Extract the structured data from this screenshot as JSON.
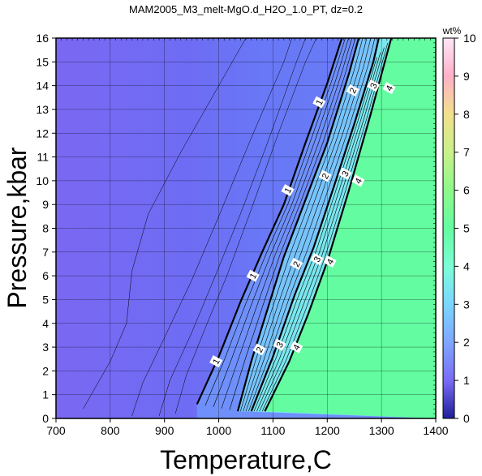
{
  "chart_data": {
    "type": "heatmap",
    "title": "MAM2005_M3_melt-MgO.d_H2O_1.0_PT, dz=0.2",
    "xlabel": "Temperature,C",
    "ylabel": "Pressure,kbar",
    "xlim": [
      700,
      1400
    ],
    "ylim": [
      0,
      16
    ],
    "x_ticks": [
      "700",
      "800",
      "900",
      "1000",
      "1100",
      "1200",
      "1300",
      "1400"
    ],
    "y_ticks": [
      "0",
      "1",
      "2",
      "3",
      "4",
      "5",
      "6",
      "7",
      "8",
      "9",
      "10",
      "11",
      "12",
      "13",
      "14",
      "15",
      "16"
    ],
    "grid": true,
    "colorbar": {
      "title": "wt%",
      "range": [
        0,
        10
      ],
      "ticks": [
        "0",
        "1",
        "2",
        "3",
        "4",
        "5",
        "6",
        "7",
        "8",
        "9",
        "10"
      ],
      "colors": [
        "#1f1f9a",
        "#7a6cf5",
        "#7ea6ff",
        "#7ad6ff",
        "#7affd6",
        "#63fca0",
        "#8ef98a",
        "#c9f08a",
        "#f2e08c",
        "#ffb0c8",
        "#ffe6f8"
      ]
    },
    "major_contours": [
      {
        "label": "1",
        "points": [
          [
            960,
            0.6
          ],
          [
            1000,
            2.6
          ],
          [
            1040,
            4.9
          ],
          [
            1080,
            7.0
          ],
          [
            1120,
            9.0
          ],
          [
            1160,
            11.6
          ],
          [
            1200,
            14.1
          ],
          [
            1227,
            16.0
          ]
        ]
      },
      {
        "label": "2",
        "points": [
          [
            1035,
            0.3
          ],
          [
            1060,
            2.4
          ],
          [
            1090,
            4.6
          ],
          [
            1120,
            6.8
          ],
          [
            1160,
            9.2
          ],
          [
            1200,
            11.6
          ],
          [
            1240,
            14.5
          ],
          [
            1258,
            16.0
          ]
        ]
      },
      {
        "label": "3",
        "points": [
          [
            1060,
            0.3
          ],
          [
            1100,
            2.6
          ],
          [
            1140,
            5.2
          ],
          [
            1175,
            7.2
          ],
          [
            1210,
            9.6
          ],
          [
            1250,
            12.4
          ],
          [
            1285,
            15.0
          ],
          [
            1295,
            16.0
          ]
        ]
      },
      {
        "label": "4",
        "points": [
          [
            1085,
            0.3
          ],
          [
            1130,
            2.4
          ],
          [
            1165,
            4.4
          ],
          [
            1200,
            6.6
          ],
          [
            1240,
            9.6
          ],
          [
            1280,
            12.8
          ],
          [
            1318,
            16.0
          ]
        ]
      }
    ],
    "label_positions": [
      {
        "label": "1",
        "x": 995,
        "y": 2.4
      },
      {
        "label": "1",
        "x": 1063,
        "y": 6.0
      },
      {
        "label": "1",
        "x": 1127,
        "y": 9.6
      },
      {
        "label": "1",
        "x": 1185,
        "y": 13.3
      },
      {
        "label": "2",
        "x": 1075,
        "y": 2.9
      },
      {
        "label": "2",
        "x": 1143,
        "y": 6.5
      },
      {
        "label": "2",
        "x": 1196,
        "y": 10.2
      },
      {
        "label": "2",
        "x": 1247,
        "y": 13.8
      },
      {
        "label": "3",
        "x": 1112,
        "y": 3.1
      },
      {
        "label": "3",
        "x": 1181,
        "y": 6.7
      },
      {
        "label": "3",
        "x": 1233,
        "y": 10.3
      },
      {
        "label": "3",
        "x": 1285,
        "y": 14.0
      },
      {
        "label": "4",
        "x": 1143,
        "y": 3.0
      },
      {
        "label": "4",
        "x": 1205,
        "y": 6.6
      },
      {
        "label": "4",
        "x": 1257,
        "y": 10.0
      },
      {
        "label": "4",
        "x": 1314,
        "y": 13.9
      }
    ]
  }
}
